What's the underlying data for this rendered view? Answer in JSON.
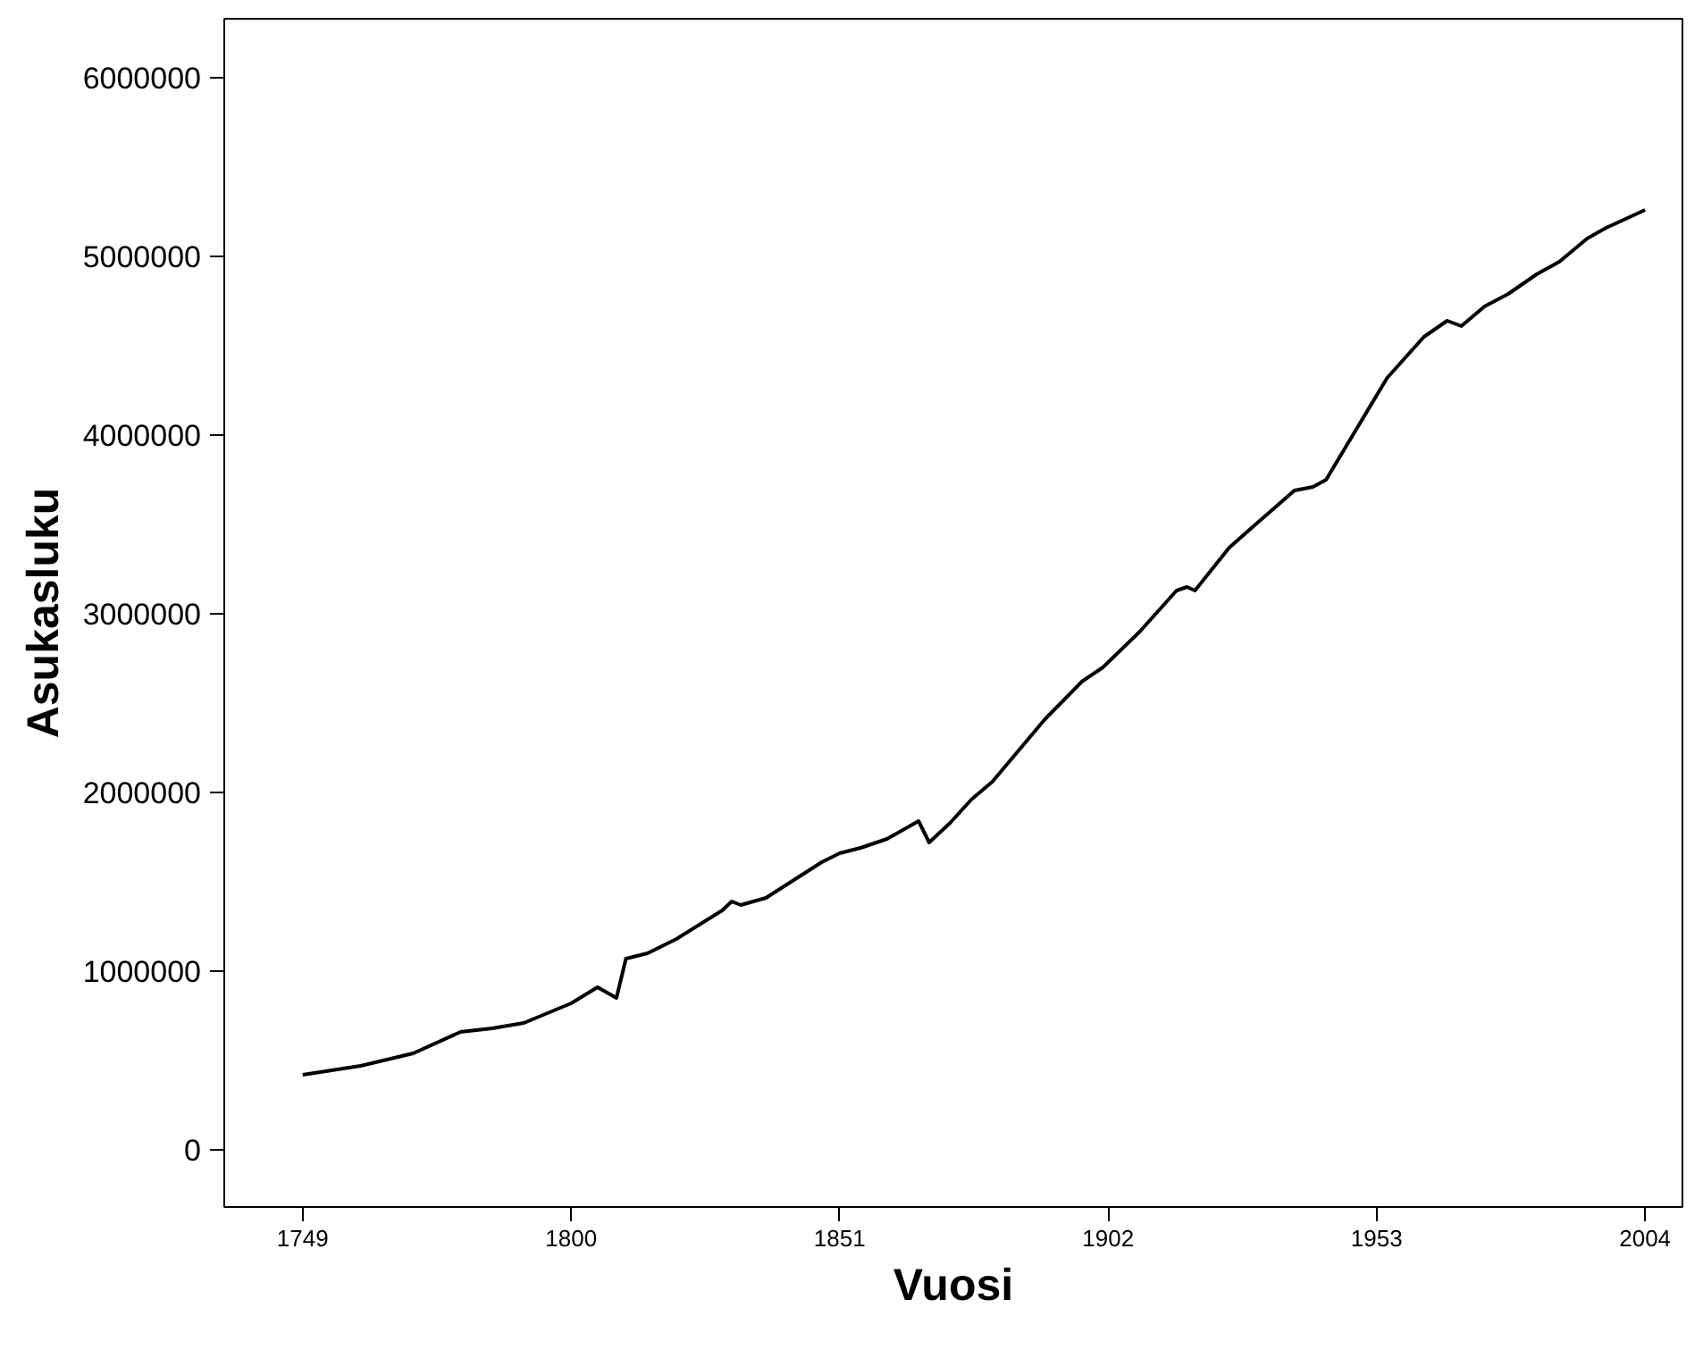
{
  "chart_data": {
    "type": "line",
    "xlabel": "Vuosi",
    "ylabel": "Asukasluku",
    "x": [
      1749,
      1760,
      1770,
      1779,
      1785,
      1791,
      1800,
      1805,
      1808.6,
      1810.4,
      1814.5,
      1820,
      1828.7,
      1830.5,
      1832.2,
      1837,
      1847.6,
      1851,
      1855,
      1860,
      1866,
      1868,
      1872,
      1876,
      1880,
      1890,
      1897,
      1901,
      1908,
      1915,
      1917,
      1918.5,
      1925,
      1930,
      1937.4,
      1940.9,
      1943.4,
      1955,
      1962,
      1966.4,
      1969.1,
      1973.5,
      1978,
      1983.4,
      1987.7,
      1993,
      1996.6,
      2004
    ],
    "values": [
      420000,
      470000,
      540000,
      660000,
      680000,
      710000,
      820000,
      910000,
      850000,
      1070000,
      1100000,
      1180000,
      1340000,
      1390000,
      1370000,
      1410000,
      1610000,
      1660000,
      1690000,
      1740000,
      1840000,
      1720000,
      1830000,
      1960000,
      2060000,
      2410000,
      2620000,
      2700000,
      2900000,
      3130000,
      3150000,
      3130000,
      3370000,
      3500000,
      3690000,
      3710000,
      3750000,
      4320000,
      4550000,
      4640000,
      4610000,
      4720000,
      4790000,
      4900000,
      4970000,
      5100000,
      5160000,
      5260000
    ],
    "color": "#000000",
    "line_style": "solid",
    "marker": "none",
    "grid": false,
    "xlim": [
      1734.1,
      2011.1
    ],
    "ylim": [
      -320000,
      6330000
    ],
    "xticks": [
      1749,
      1800,
      1851,
      1902,
      1953,
      2004
    ],
    "yticks": [
      0,
      1000000,
      2000000,
      3000000,
      4000000,
      5000000,
      6000000
    ]
  }
}
